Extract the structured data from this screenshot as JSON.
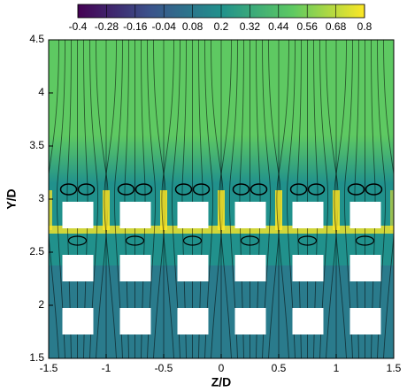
{
  "chart_data": {
    "type": "contour",
    "x_label": "Z/D",
    "y_label": "Y/D",
    "xlim": [
      -1.5,
      1.5
    ],
    "ylim": [
      1.5,
      4.5
    ],
    "xticks": [
      -1.5,
      -1,
      -0.5,
      0,
      0.5,
      1,
      1.5
    ],
    "yticks": [
      1.5,
      2,
      2.5,
      3,
      3.5,
      4,
      4.5
    ],
    "colorbar": {
      "lim": [
        -0.4,
        0.8
      ],
      "ticks": [
        -0.4,
        -0.28,
        -0.16,
        -0.04,
        0.08,
        0.2,
        0.32,
        0.44,
        0.56,
        0.68,
        0.8
      ],
      "colors": [
        "#440154",
        "#3b528b",
        "#21918c",
        "#5ec962",
        "#fde725"
      ]
    }
  }
}
